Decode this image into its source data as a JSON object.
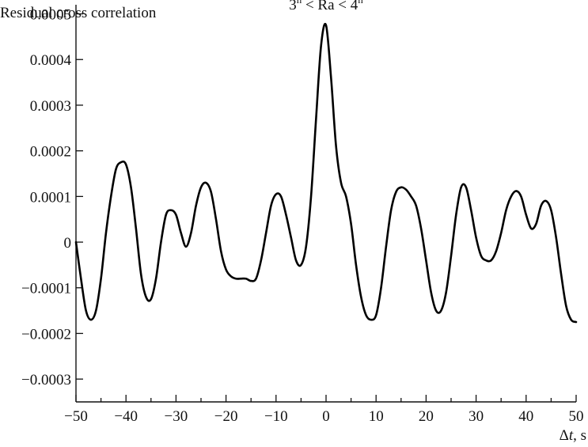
{
  "chart_data": {
    "type": "line",
    "title": "",
    "ylabel": "Residual cross correlation",
    "xlabel_symbol": "Δ",
    "xlabel_var": "t",
    "xlabel_unit": ", s",
    "annotation": {
      "base1": "3",
      "sup1": "h",
      "mid": " < Ra < 4",
      "sup2": "h",
      "x": 0,
      "y": 0.00051
    },
    "xlim": [
      -50,
      50
    ],
    "ylim": [
      -0.00035,
      0.00052
    ],
    "x_ticks": [
      -50,
      -40,
      -30,
      -20,
      -10,
      0,
      10,
      20,
      30,
      40,
      50
    ],
    "x_tick_labels": [
      "−50",
      "−40",
      "−30",
      "−20",
      "−10",
      "0",
      "10",
      "20",
      "30",
      "40",
      "50"
    ],
    "y_ticks": [
      0.0005,
      0.0004,
      0.0003,
      0.0002,
      0.0001,
      0,
      -0.0001,
      -0.0002,
      -0.0003
    ],
    "y_tick_labels": [
      "0.0005",
      "0.0004",
      "0.0003",
      "0.0002",
      "0.0001",
      "0",
      "−0.0001",
      "−0.0002",
      "−0.0003"
    ],
    "grid": false,
    "series": [
      {
        "x": [
          -50,
          -49,
          -48,
          -47,
          -46,
          -45,
          -44,
          -43,
          -42,
          -41,
          -40,
          -39,
          -38,
          -37,
          -36,
          -35,
          -34,
          -33,
          -32,
          -31,
          -30,
          -29,
          -28,
          -27,
          -26,
          -25,
          -24,
          -23,
          -22,
          -21,
          -20,
          -19,
          -18,
          -17,
          -16,
          -15,
          -14,
          -13,
          -12,
          -11,
          -10,
          -9,
          -8,
          -7,
          -6,
          -5,
          -4,
          -3,
          -2,
          -1,
          0,
          1,
          2,
          3,
          4,
          5,
          6,
          7,
          8,
          9,
          10,
          11,
          12,
          13,
          14,
          15,
          16,
          17,
          18,
          19,
          20,
          21,
          22,
          23,
          24,
          25,
          26,
          27,
          28,
          29,
          30,
          31,
          32,
          33,
          34,
          35,
          36,
          37,
          38,
          39,
          40,
          41,
          42,
          43,
          44,
          45,
          46,
          47,
          48,
          49,
          50
        ],
        "y": [
          0.0,
          -8e-05,
          -0.00015,
          -0.00017,
          -0.00015,
          -8e-05,
          2e-05,
          0.0001,
          0.00016,
          0.000175,
          0.00017,
          0.00012,
          3e-05,
          -7e-05,
          -0.00012,
          -0.000125,
          -8e-05,
          0.0,
          6e-05,
          7e-05,
          6e-05,
          2e-05,
          -1e-05,
          2e-05,
          8e-05,
          0.00012,
          0.00013,
          0.00011,
          5e-05,
          -2e-05,
          -6e-05,
          -7.5e-05,
          -8e-05,
          -8e-05,
          -8e-05,
          -8.5e-05,
          -8e-05,
          -4e-05,
          2e-05,
          8e-05,
          0.000105,
          0.0001,
          6e-05,
          1e-05,
          -4e-05,
          -5e-05,
          -1e-05,
          0.0001,
          0.00027,
          0.00043,
          0.000475,
          0.00036,
          0.00021,
          0.00013,
          0.0001,
          4e-05,
          -5e-05,
          -0.00012,
          -0.00016,
          -0.00017,
          -0.00016,
          -0.0001,
          -1e-05,
          7e-05,
          0.00011,
          0.00012,
          0.000115,
          0.0001,
          8e-05,
          3e-05,
          -4e-05,
          -0.00011,
          -0.00015,
          -0.00015,
          -0.00011,
          -3e-05,
          6e-05,
          0.00012,
          0.00012,
          7e-05,
          1e-05,
          -3e-05,
          -4e-05,
          -4e-05,
          -2e-05,
          2e-05,
          7e-05,
          0.0001,
          0.000112,
          0.0001,
          6e-05,
          3e-05,
          4e-05,
          8e-05,
          9e-05,
          7e-05,
          1e-05,
          -7e-05,
          -0.00014,
          -0.00017,
          -0.000175
        ]
      }
    ]
  }
}
